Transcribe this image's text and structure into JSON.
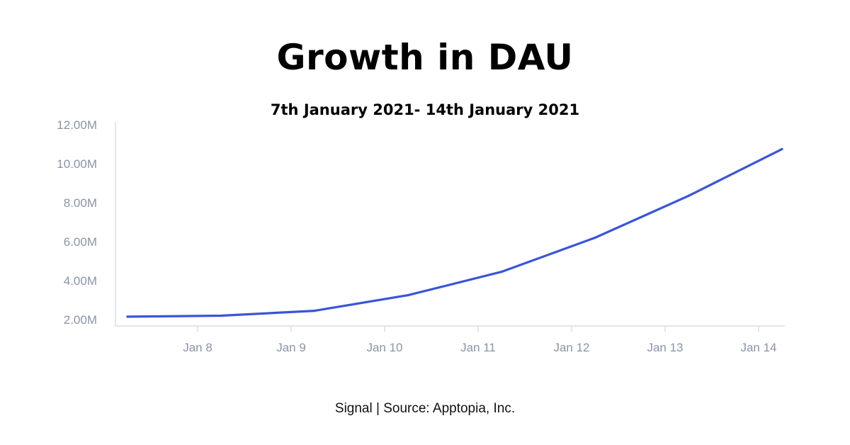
{
  "chart_data": {
    "type": "line",
    "title": "Growth in DAU",
    "subtitle": "7th January 2021- 14th January 2021",
    "xlabel": "",
    "ylabel": "",
    "x": [
      "Jan 7",
      "Jan 8",
      "Jan 9",
      "Jan 10",
      "Jan 11",
      "Jan 12",
      "Jan 13",
      "Jan 14"
    ],
    "x_tick_labels": [
      "Jan 8",
      "Jan 9",
      "Jan 10",
      "Jan 11",
      "Jan 12",
      "Jan 13",
      "Jan 14"
    ],
    "y_tick_labels": [
      "2.00M",
      "4.00M",
      "6.00M",
      "8.00M",
      "10.00M",
      "12.00M"
    ],
    "y_ticks": [
      2,
      4,
      6,
      8,
      10,
      12
    ],
    "ylim": [
      2,
      12
    ],
    "y_unit": "M",
    "series": [
      {
        "x": [
          "2021-01-07T06:00",
          "2021-01-08T06:00",
          "2021-01-09T06:00",
          "2021-01-10T06:00",
          "2021-01-11T06:00",
          "2021-01-12T06:00",
          "2021-01-13T06:00",
          "2021-01-14T06:00"
        ],
        "values": [
          2.15,
          2.2,
          2.45,
          3.25,
          4.45,
          6.2,
          8.35,
          10.75
        ]
      }
    ],
    "grid": false,
    "legend": "none",
    "colors": {
      "line": "#3a55d6",
      "axis": "#d9dde3",
      "tick_text": "#8a94a6"
    }
  },
  "footer": {
    "source": "Signal | Source: Apptopia, Inc."
  }
}
